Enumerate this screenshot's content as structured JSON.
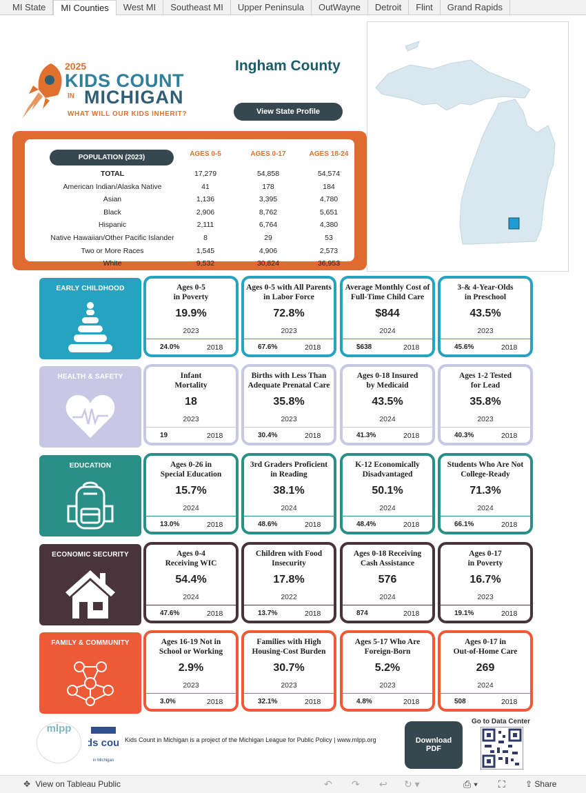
{
  "tabs": [
    "MI State",
    "MI Counties",
    "West MI",
    "Southeast MI",
    "Upper Peninsula",
    "OutWayne",
    "Detroit",
    "Flint",
    "Grand Rapids"
  ],
  "logo": {
    "year": "2025",
    "kids_count": "KIDS COUNT",
    "in": "IN",
    "michigan": "MICHIGAN",
    "tagline": "WHAT WILL OUR KIDS INHERIT?"
  },
  "county": "Ingham County",
  "view_state_profile": "View State Profile",
  "population": {
    "header": "POPULATION (2023)",
    "ages": [
      "AGES 0-5",
      "AGES 0-17",
      "AGES 18-24"
    ],
    "rows": [
      {
        "label": "TOTAL",
        "v": [
          "17,279",
          "54,858",
          "54,574"
        ]
      },
      {
        "label": "American Indian/Alaska Native",
        "v": [
          "41",
          "178",
          "184"
        ]
      },
      {
        "label": "Asian",
        "v": [
          "1,136",
          "3,395",
          "4,780"
        ]
      },
      {
        "label": "Black",
        "v": [
          "2,906",
          "8,762",
          "5,651"
        ]
      },
      {
        "label": "Hispanic",
        "v": [
          "2,111",
          "6,764",
          "4,380"
        ]
      },
      {
        "label": "Native Hawaiian/Other Pacific Islander",
        "v": [
          "8",
          "29",
          "53"
        ]
      },
      {
        "label": "Two or More Races",
        "v": [
          "1,545",
          "4,906",
          "2,573"
        ]
      },
      {
        "label": "White",
        "v": [
          "9,532",
          "30,824",
          "36,953"
        ]
      }
    ]
  },
  "sections": [
    {
      "label": "EARLY CHILDHOOD",
      "color": "#27a3c2",
      "icon": "stacking-rings-icon",
      "cards": [
        {
          "title": "Ages 0-5\nin Poverty",
          "value": "19.9%",
          "year": "2023",
          "prev": "24.0%",
          "prev_year": "2018"
        },
        {
          "title": "Ages 0-5 with All Parents\nin Labor Force",
          "value": "72.8%",
          "year": "2023",
          "prev": "67.6%",
          "prev_year": "2018"
        },
        {
          "title": "Average Monthly Cost of\nFull-Time Child Care",
          "value": "$844",
          "year": "2024",
          "prev": "$638",
          "prev_year": "2018"
        },
        {
          "title": "3-& 4-Year-Olds\nin Preschool",
          "value": "43.5%",
          "year": "2023",
          "prev": "45.6%",
          "prev_year": "2018"
        }
      ]
    },
    {
      "label": "HEALTH & SAFETY",
      "color": "#c9c8e4",
      "icon": "heart-pulse-icon",
      "cards": [
        {
          "title": "Infant\nMortality",
          "value": "18",
          "year": "2023",
          "prev": "19",
          "prev_year": "2018"
        },
        {
          "title": "Births with Less Than\nAdequate Prenatal Care",
          "value": "35.8%",
          "year": "2023",
          "prev": "30.4%",
          "prev_year": "2018"
        },
        {
          "title": "Ages 0-18 Insured\nby Medicaid",
          "value": "43.5%",
          "year": "2024",
          "prev": "41.3%",
          "prev_year": "2018"
        },
        {
          "title": "Ages 1-2 Tested\nfor Lead",
          "value": "35.8%",
          "year": "2023",
          "prev": "40.3%",
          "prev_year": "2018"
        }
      ]
    },
    {
      "label": "EDUCATION",
      "color": "#2a8f86",
      "icon": "backpack-icon",
      "cards": [
        {
          "title": "Ages 0-26 in\nSpecial Education",
          "value": "15.7%",
          "year": "2024",
          "prev": "13.0%",
          "prev_year": "2018"
        },
        {
          "title": "3rd Graders Proficient\nin Reading",
          "value": "38.1%",
          "year": "2024",
          "prev": "48.6%",
          "prev_year": "2018"
        },
        {
          "title": "K-12 Economically\nDisadvantaged",
          "value": "50.1%",
          "year": "2024",
          "prev": "48.4%",
          "prev_year": "2018"
        },
        {
          "title": "Students Who Are Not\nCollege-Ready",
          "value": "71.3%",
          "year": "2024",
          "prev": "66.1%",
          "prev_year": "2018"
        }
      ]
    },
    {
      "label": "ECONOMIC SECURITY",
      "color": "#4a343b",
      "icon": "house-icon",
      "cards": [
        {
          "title": "Ages 0-4\nReceiving WIC",
          "value": "54.4%",
          "year": "2024",
          "prev": "47.6%",
          "prev_year": "2018"
        },
        {
          "title": "Children with Food\nInsecurity",
          "value": "17.8%",
          "year": "2022",
          "prev": "13.7%",
          "prev_year": "2018"
        },
        {
          "title": "Ages 0-18 Receiving\nCash Assistance",
          "value": "576",
          "year": "2024",
          "prev": "874",
          "prev_year": "2018"
        },
        {
          "title": "Ages 0-17\nin Poverty",
          "value": "16.7%",
          "year": "2023",
          "prev": "19.1%",
          "prev_year": "2018"
        }
      ]
    },
    {
      "label": "FAMILY & COMMUNITY",
      "color": "#ee5a38",
      "icon": "community-network-icon",
      "cards": [
        {
          "title": "Ages 16-19 Not in\nSchool or Working",
          "value": "2.9%",
          "year": "2023",
          "prev": "3.0%",
          "prev_year": "2018"
        },
        {
          "title": "Families with High\nHousing-Cost Burden",
          "value": "30.7%",
          "year": "2023",
          "prev": "32.1%",
          "prev_year": "2018"
        },
        {
          "title": "Ages 5-17 Who Are\nForeign-Born",
          "value": "5.2%",
          "year": "2023",
          "prev": "4.8%",
          "prev_year": "2018"
        },
        {
          "title": "Ages 0-17 in\nOut-of-Home Care",
          "value": "269",
          "year": "2024",
          "prev": "508",
          "prev_year": "2018"
        }
      ]
    }
  ],
  "footer": {
    "mlpp": "mlpp",
    "kc_logo": "kids count",
    "kc_sub": "in Michigan",
    "text": "Kids Count in Michigan is a project of the Michigan League for Public Policy | www.mlpp.org",
    "download": "Download\nPDF",
    "data_center": "Go to Data Center"
  },
  "bottom": {
    "tableau": "View on Tableau Public",
    "share": "Share"
  }
}
